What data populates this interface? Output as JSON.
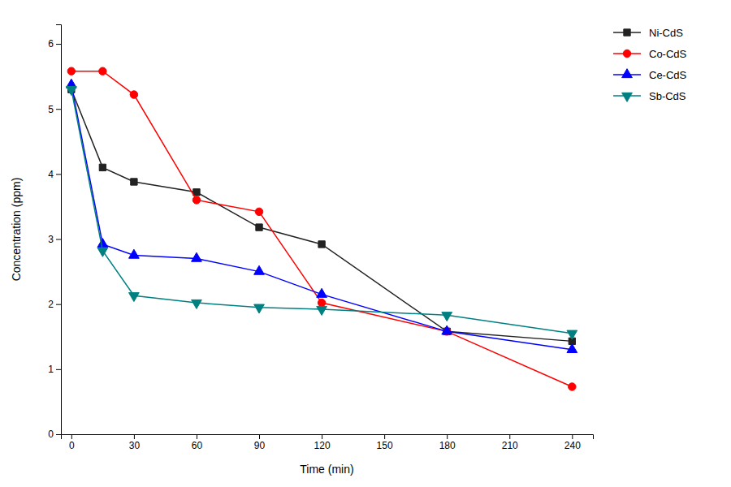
{
  "chart_data": {
    "type": "line",
    "xlabel": "Time (min)",
    "ylabel": "Concentration (ppm)",
    "x": [
      0,
      15,
      30,
      60,
      90,
      120,
      180,
      240
    ],
    "series": [
      {
        "name": "Ni-CdS",
        "color": "#222222",
        "marker": "square",
        "line_style": "solid",
        "values": [
          5.3,
          4.1,
          3.88,
          3.72,
          3.18,
          2.92,
          1.58,
          1.43
        ]
      },
      {
        "name": "Co-CdS",
        "color": "#ff0000",
        "marker": "circle",
        "line_style": "solid",
        "values": [
          5.58,
          5.58,
          5.22,
          3.6,
          3.42,
          2.02,
          1.58,
          0.73
        ]
      },
      {
        "name": "Ce-CdS",
        "color": "#0000ff",
        "marker": "triangle-up",
        "line_style": "solid",
        "values": [
          5.37,
          2.92,
          2.75,
          2.7,
          2.5,
          2.15,
          1.58,
          1.3
        ]
      },
      {
        "name": "Sb-CdS",
        "color": "#008080",
        "marker": "triangle-down",
        "line_style": "solid",
        "values": [
          5.3,
          2.82,
          2.13,
          2.02,
          1.95,
          1.92,
          1.83,
          1.55
        ]
      }
    ],
    "xlim": [
      -5,
      250
    ],
    "ylim": [
      0,
      6.3
    ],
    "xticks": [
      0,
      30,
      60,
      90,
      120,
      150,
      180,
      210,
      240
    ],
    "yticks": [
      0,
      1,
      2,
      3,
      4,
      5,
      6
    ],
    "grid": false,
    "legend": "upper-right"
  }
}
